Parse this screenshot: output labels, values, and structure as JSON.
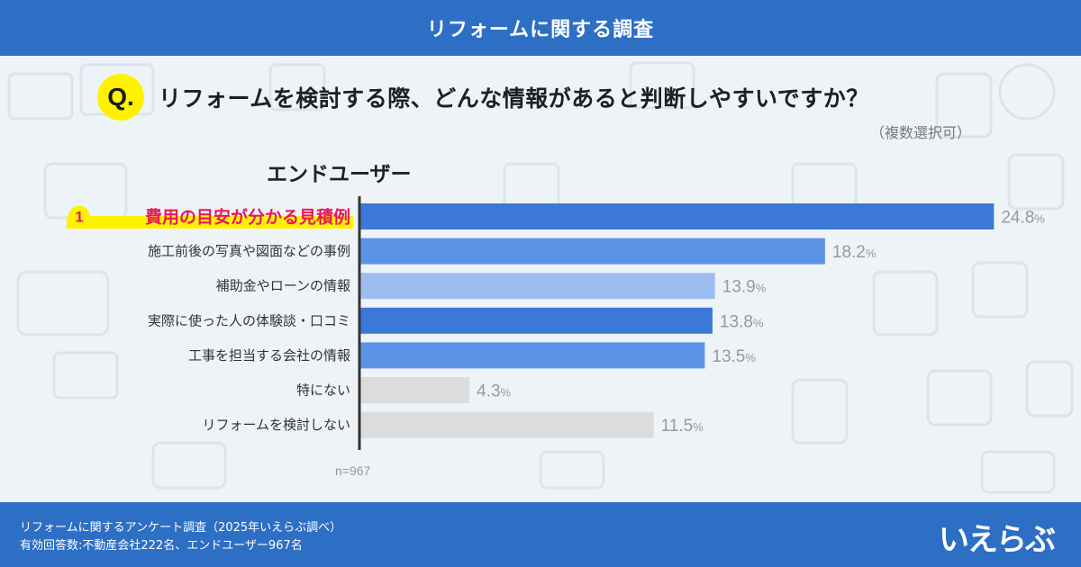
{
  "header": {
    "title": "リフォームに関する調査"
  },
  "question": {
    "badge": "Q.",
    "text": "リフォームを検討する際、どんな情報があると判断しやすいですか？",
    "note": "（複数選択可）"
  },
  "segment_label": "エンドユーザー",
  "footer": {
    "line1": "リフォームに関するアンケート調査（2025年いえらぶ調べ）",
    "line2": "有効回答数:不動産会社222名、エンドユーザー967名",
    "logo": "いえらぶ"
  },
  "colors": {
    "header_bg": "#2d6fc4",
    "bar_dark": "#3b78d8",
    "bar_mid": "#5d93e6",
    "bar_light": "#9dbdf2",
    "bar_gray": "#dcdcdc",
    "highlight_text": "#e8175d",
    "highlight_marker": "#fff200"
  },
  "chart_data": {
    "type": "bar",
    "orientation": "horizontal",
    "categories": [
      "費用の目安が分かる見積例",
      "施工前後の写真や図面などの事例",
      "補助金やローンの情報",
      "実際に使った人の体験談・口コミ",
      "工事を担当する会社の情報",
      "特にない",
      "リフォームを検討しない"
    ],
    "values": [
      24.8,
      18.2,
      13.9,
      13.8,
      13.5,
      4.3,
      11.5
    ],
    "value_labels": [
      "24.8",
      "18.2",
      "13.9",
      "13.8",
      "13.5",
      "4.3",
      "11.5"
    ],
    "unit": "%",
    "bar_tones": [
      "dark",
      "mid",
      "light",
      "dark",
      "mid",
      "gray",
      "gray"
    ],
    "rank_badge": "1",
    "highlighted_index": 0,
    "sample_size": "n=967",
    "xlim": [
      0,
      25
    ]
  }
}
